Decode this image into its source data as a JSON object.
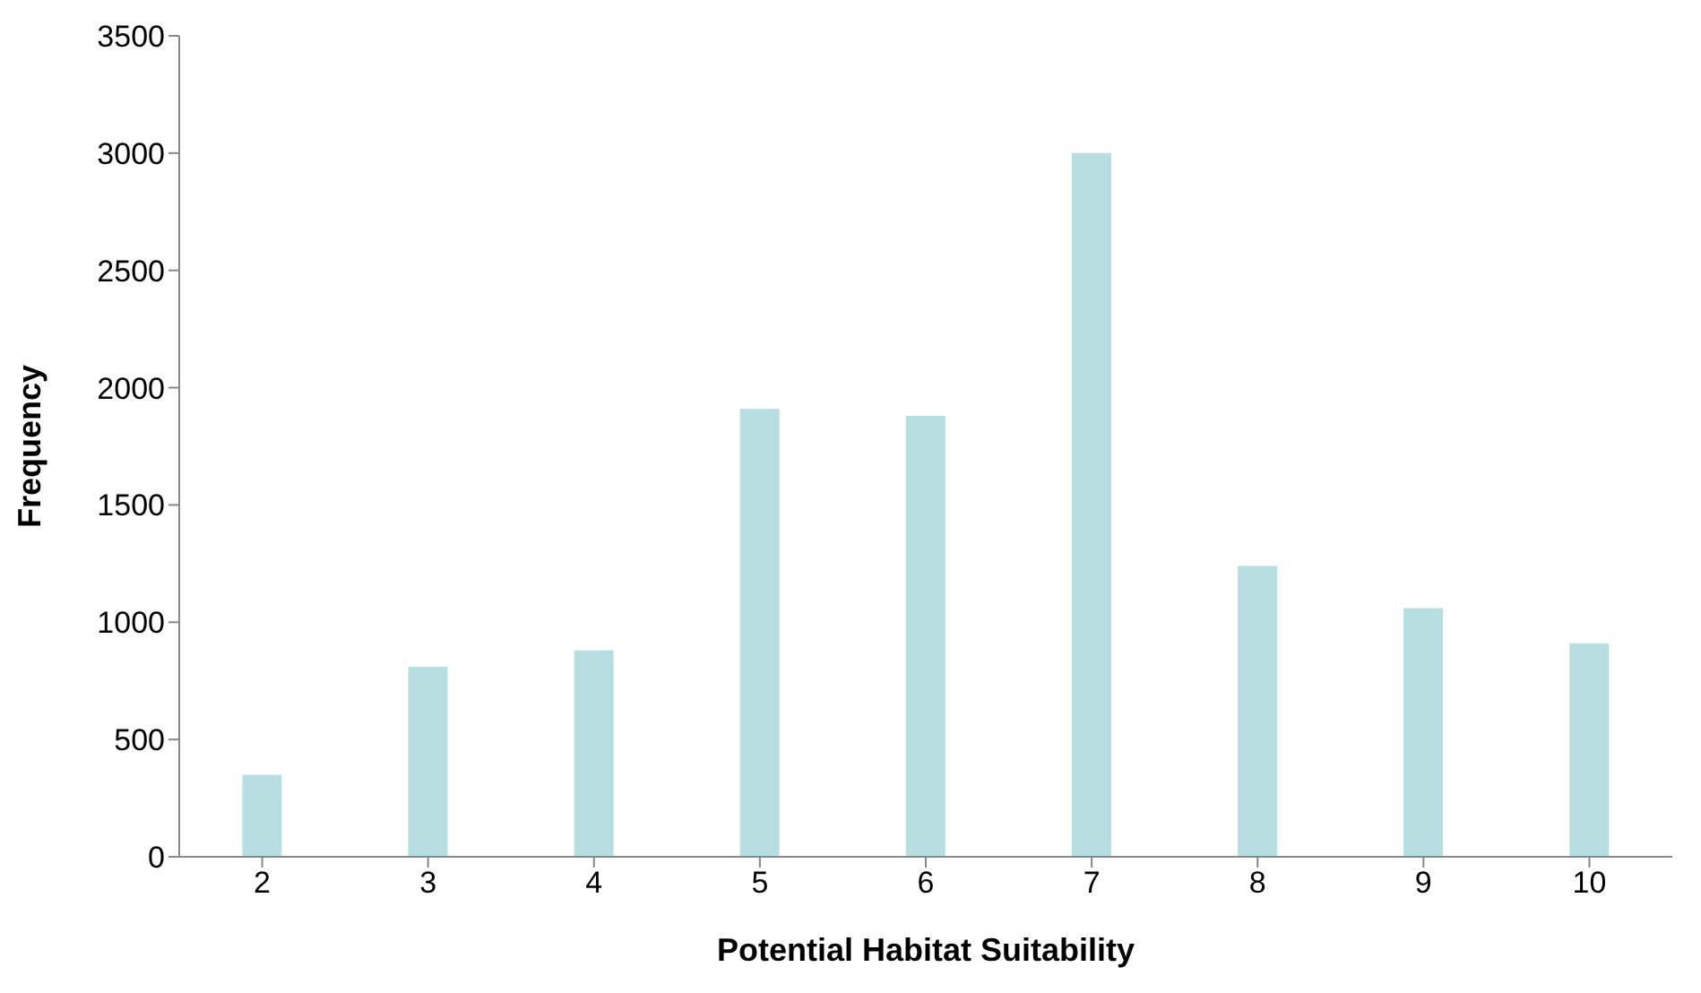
{
  "chart_data": {
    "type": "bar",
    "xlabel": "Potential Habitat Suitability",
    "ylabel": "Frequency",
    "categories": [
      "2",
      "3",
      "4",
      "5",
      "6",
      "7",
      "8",
      "9",
      "10"
    ],
    "values": [
      350,
      810,
      880,
      1910,
      1880,
      3000,
      1240,
      1060,
      910
    ],
    "color": "#b7dfe1",
    "ylim": [
      0,
      3500
    ],
    "yticks": [
      0,
      500,
      1000,
      1500,
      2000,
      2500,
      3000,
      3500
    ],
    "grid": false,
    "legend": false
  }
}
